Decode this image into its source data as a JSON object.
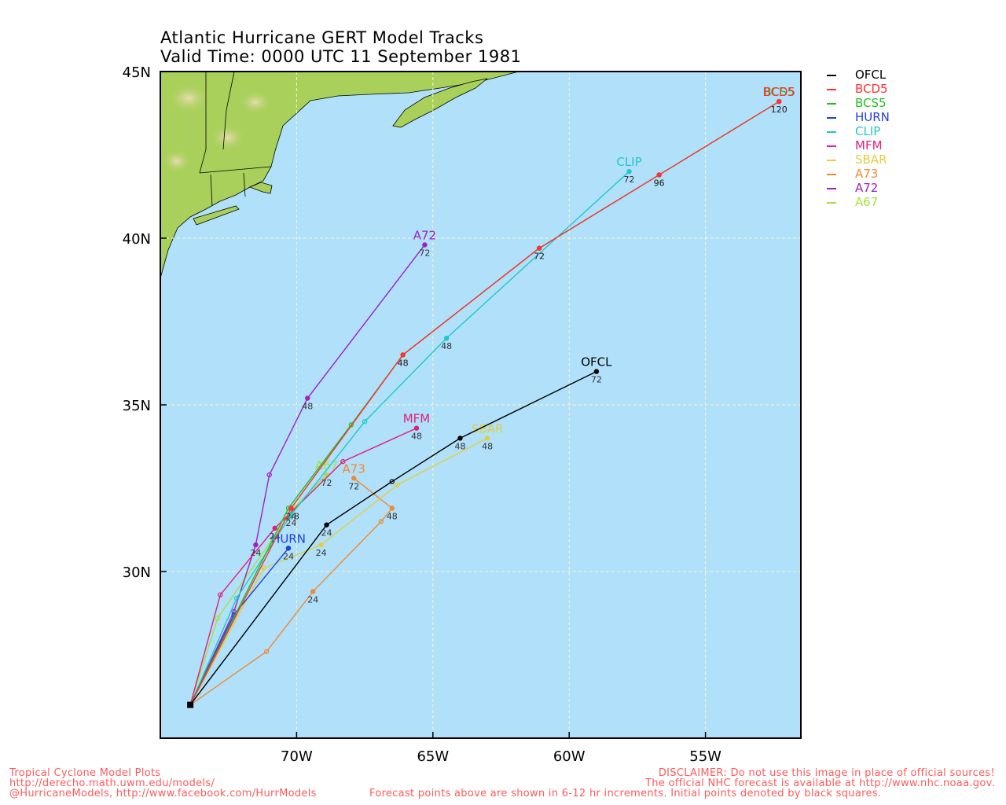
{
  "title": {
    "line1": "Atlantic Hurricane GERT Model Tracks",
    "line2": "Valid Time: 0000 UTC 11 September 1981"
  },
  "colors": {
    "ocean": "#b0e0fa",
    "land": "#a8d05a",
    "grid": "#fbf7c8",
    "frame": "#000000",
    "footer": "#ff5a5a"
  },
  "axes": {
    "lon_range": [
      -75.0,
      -51.5
    ],
    "lat_range": [
      25.0,
      45.0
    ],
    "lon_ticks": [
      {
        "value": -70,
        "label": "70W"
      },
      {
        "value": -65,
        "label": "65W"
      },
      {
        "value": -60,
        "label": "60W"
      },
      {
        "value": -55,
        "label": "55W"
      }
    ],
    "lat_ticks": [
      {
        "value": 45,
        "label": "45N"
      },
      {
        "value": 40,
        "label": "40N"
      },
      {
        "value": 35,
        "label": "35N"
      },
      {
        "value": 30,
        "label": "30N"
      }
    ]
  },
  "initial_point": {
    "lon": -73.9,
    "lat": 26.0
  },
  "models": [
    {
      "name": "OFCL",
      "color": "#000000",
      "label_at": "end",
      "points": [
        {
          "lon": -68.9,
          "lat": 31.4,
          "hr": "24"
        },
        {
          "lon": -66.5,
          "lat": 32.7,
          "hr": ""
        },
        {
          "lon": -64.0,
          "lat": 34.0,
          "hr": "48"
        },
        {
          "lon": -59.0,
          "lat": 36.0,
          "hr": "72"
        }
      ]
    },
    {
      "name": "BCD5",
      "color": "#ff3030",
      "label_at": "end",
      "points": [
        {
          "lon": -70.2,
          "lat": 31.9,
          "hr": "24"
        },
        {
          "lon": -66.1,
          "lat": 36.5,
          "hr": "48"
        },
        {
          "lon": -61.1,
          "lat": 39.7,
          "hr": "72"
        },
        {
          "lon": -56.7,
          "lat": 41.9,
          "hr": "96"
        },
        {
          "lon": -52.3,
          "lat": 44.1,
          "hr": "120"
        }
      ]
    },
    {
      "name": "BCS5",
      "color": "#20c020",
      "label_at": "end",
      "points": [
        {
          "lon": -70.3,
          "lat": 31.9,
          "hr": ""
        },
        {
          "lon": -68.0,
          "lat": 34.4,
          "hr": ""
        },
        {
          "lon": -66.1,
          "lat": 36.5,
          "hr": "48"
        },
        {
          "lon": -61.1,
          "lat": 39.7,
          "hr": "72"
        },
        {
          "lon": -56.7,
          "lat": 41.9,
          "hr": "96"
        },
        {
          "lon": -52.3,
          "lat": 44.1,
          "hr": "120"
        }
      ]
    },
    {
      "name": "HURN",
      "color": "#2040e0",
      "label_at": "end",
      "points": [
        {
          "lon": -72.3,
          "lat": 28.7,
          "hr": ""
        },
        {
          "lon": -70.3,
          "lat": 30.7,
          "hr": "24"
        }
      ]
    },
    {
      "name": "CLIP",
      "color": "#20c8c8",
      "label_at": "end",
      "points": [
        {
          "lon": -72.2,
          "lat": 29.2,
          "hr": ""
        },
        {
          "lon": -70.2,
          "lat": 31.7,
          "hr": "24"
        },
        {
          "lon": -67.5,
          "lat": 34.5,
          "hr": ""
        },
        {
          "lon": -64.5,
          "lat": 37.0,
          "hr": "48"
        },
        {
          "lon": -57.8,
          "lat": 42.0,
          "hr": "72"
        }
      ]
    },
    {
      "name": "MFM",
      "color": "#e0207a",
      "label_at": "end",
      "points": [
        {
          "lon": -72.8,
          "lat": 29.3,
          "hr": ""
        },
        {
          "lon": -70.8,
          "lat": 31.3,
          "hr": "24"
        },
        {
          "lon": -68.3,
          "lat": 33.3,
          "hr": ""
        },
        {
          "lon": -65.6,
          "lat": 34.3,
          "hr": "48"
        }
      ]
    },
    {
      "name": "SBAR",
      "color": "#e0d040",
      "label_at": "end",
      "points": [
        {
          "lon": -71.2,
          "lat": 30.1,
          "hr": ""
        },
        {
          "lon": -69.1,
          "lat": 30.8,
          "hr": "24"
        },
        {
          "lon": -66.3,
          "lat": 32.6,
          "hr": ""
        },
        {
          "lon": -63.0,
          "lat": 34.0,
          "hr": "48"
        }
      ]
    },
    {
      "name": "A73",
      "color": "#f08a30",
      "label_at": "end",
      "points": [
        {
          "lon": -71.1,
          "lat": 27.6,
          "hr": ""
        },
        {
          "lon": -69.4,
          "lat": 29.4,
          "hr": "24"
        },
        {
          "lon": -66.9,
          "lat": 31.5,
          "hr": ""
        },
        {
          "lon": -66.5,
          "lat": 31.9,
          "hr": "48"
        },
        {
          "lon": -67.9,
          "lat": 32.8,
          "hr": "72"
        }
      ]
    },
    {
      "name": "A72",
      "color": "#a020c0",
      "label_at": "end",
      "points": [
        {
          "lon": -72.3,
          "lat": 28.8,
          "hr": ""
        },
        {
          "lon": -71.5,
          "lat": 30.8,
          "hr": "24"
        },
        {
          "lon": -71.0,
          "lat": 32.9,
          "hr": ""
        },
        {
          "lon": -69.6,
          "lat": 35.2,
          "hr": "48"
        },
        {
          "lon": -65.3,
          "lat": 39.8,
          "hr": "72"
        }
      ]
    },
    {
      "name": "A67",
      "color": "#a8e040",
      "label_at": "end",
      "points": [
        {
          "lon": -72.9,
          "lat": 28.6,
          "hr": ""
        },
        {
          "lon": -70.1,
          "lat": 31.9,
          "hr": "48"
        },
        {
          "lon": -68.9,
          "lat": 32.9,
          "hr": "72"
        }
      ]
    }
  ],
  "footer": {
    "left1": "Tropical Cyclone Model Plots",
    "left2": "http://derecho.math.uwm.edu/models/",
    "left3": "@HurricaneModels, http://www.facebook.com/HurrModels",
    "right1": "DISCLAIMER: Do not use this image in place of official sources!",
    "right2": "The official NHC forecast is available at http://www.nhc.noaa.gov.",
    "right3": "Forecast points above are shown in 6-12 hr increments. Initial points denoted by black squares."
  }
}
